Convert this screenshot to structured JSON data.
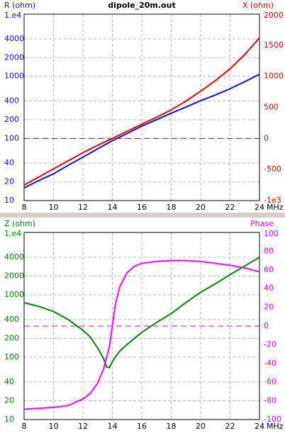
{
  "chart_data": [
    {
      "type": "line",
      "title": "dipole_20m.out",
      "xlabel": "MHz",
      "x": [
        8,
        9,
        10,
        11,
        12,
        13,
        14,
        15,
        16,
        17,
        18,
        19,
        20,
        21,
        22,
        23,
        24
      ],
      "xlim": [
        8,
        24
      ],
      "xticks": [
        8,
        10,
        12,
        14,
        16,
        18,
        20,
        22,
        24
      ],
      "ylim": [
        10,
        10000
      ],
      "ylog": true,
      "yticks": [
        {
          "value": 10000,
          "label": "1.e4"
        },
        4000,
        2000,
        1000,
        400,
        200,
        100,
        40,
        20,
        10
      ],
      "y2lim": [
        -1000,
        2000
      ],
      "y2ticks": [
        2000,
        1500,
        1000,
        500,
        0,
        -500,
        {
          "value": -1000,
          "label": "-1e3"
        }
      ],
      "grid": true,
      "y2_reference_line": true,
      "series": [
        {
          "name": "R (ohm)",
          "color": "#1010d0",
          "values": [
            16,
            21,
            27,
            37,
            50,
            68,
            92,
            120,
            158,
            200,
            255,
            320,
            405,
            500,
            630,
            820,
            1080
          ]
        },
        {
          "name": "X (ohm)",
          "color": "#dd0000",
          "axis": "y2",
          "values": [
            -750,
            -620,
            -490,
            -360,
            -230,
            -110,
            0,
            115,
            230,
            340,
            460,
            600,
            760,
            930,
            1120,
            1350,
            1620
          ]
        }
      ]
    },
    {
      "type": "line",
      "xlabel": "MHz",
      "x": [
        8,
        9,
        10,
        11,
        12,
        12.5,
        13,
        13.4,
        13.6,
        13.8,
        14,
        14.2,
        14.5,
        15,
        15.5,
        16,
        17,
        18,
        19,
        20,
        21,
        22,
        23,
        24
      ],
      "xlim": [
        8,
        24
      ],
      "xticks": [
        8,
        10,
        12,
        14,
        16,
        18,
        20,
        22,
        24
      ],
      "ylim": [
        10,
        10000
      ],
      "ylog": true,
      "yticks": [
        {
          "value": 10000,
          "label": "1.e4"
        },
        4000,
        2000,
        1000,
        400,
        200,
        100,
        40,
        20,
        10
      ],
      "y2lim": [
        -100,
        100
      ],
      "y2ticks": [
        100,
        80,
        60,
        40,
        20,
        0,
        -20,
        -40,
        -60,
        -80,
        -100
      ],
      "grid": true,
      "y2_reference_line": true,
      "series": [
        {
          "name": "Z (ohm)",
          "color": "#008000",
          "values": [
            750,
            650,
            540,
            400,
            270,
            210,
            140,
            95,
            70,
            68,
            85,
            100,
            125,
            160,
            200,
            250,
            360,
            500,
            750,
            1100,
            1500,
            2100,
            2900,
            4000
          ]
        },
        {
          "name": "Phase",
          "color": "#ff00ff",
          "axis": "y2",
          "values": [
            -89,
            -88,
            -87,
            -85,
            -78,
            -72,
            -61,
            -46,
            -34,
            -22,
            0,
            23,
            42,
            57,
            64,
            67,
            69,
            70,
            70,
            69,
            67,
            65,
            62,
            58
          ]
        }
      ]
    }
  ]
}
